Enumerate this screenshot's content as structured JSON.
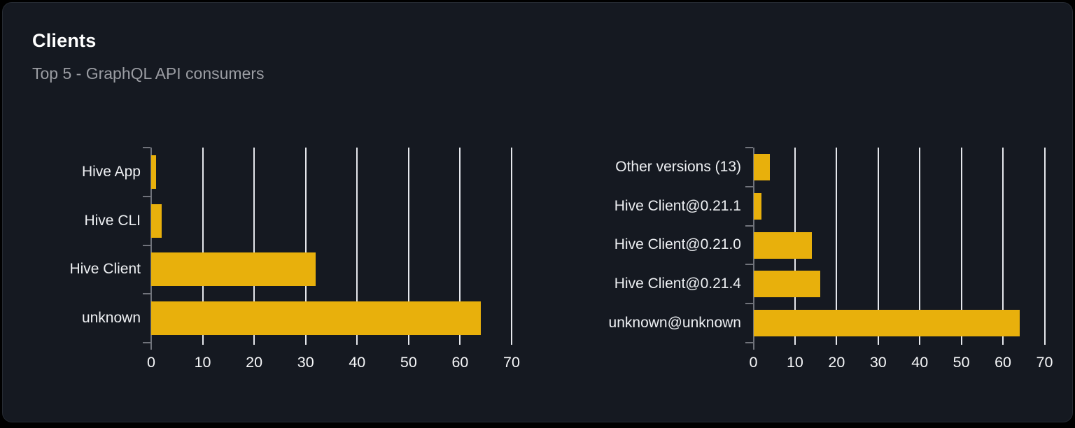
{
  "card": {
    "title": "Clients",
    "subtitle": "Top 5 - GraphQL API consumers"
  },
  "colors": {
    "bar": "#e8b00c",
    "card_background": "#151921",
    "card_border": "#262b33",
    "gridline": "#e5e7ec",
    "axis": "#70737b",
    "category_label": "#eef0f3",
    "tick_label": "#f6f7f9",
    "title": "#ffffff",
    "subtitle": "#9b9da3"
  },
  "chart_data": [
    {
      "type": "bar",
      "orientation": "horizontal",
      "name": "clients-by-name",
      "categories": [
        "Hive App",
        "Hive CLI",
        "Hive Client",
        "unknown"
      ],
      "values": [
        1,
        2,
        32,
        64
      ],
      "xticks": [
        0,
        10,
        20,
        30,
        40,
        50,
        60,
        70
      ],
      "xlim": [
        0,
        70
      ],
      "grid": true,
      "legend": false
    },
    {
      "type": "bar",
      "orientation": "horizontal",
      "name": "clients-by-version",
      "categories": [
        "Other versions (13)",
        "Hive Client@0.21.1",
        "Hive Client@0.21.0",
        "Hive Client@0.21.4",
        "unknown@unknown"
      ],
      "values": [
        4,
        2,
        14,
        16,
        64
      ],
      "xticks": [
        0,
        10,
        20,
        30,
        40,
        50,
        60,
        70
      ],
      "xlim": [
        0,
        70
      ],
      "grid": true,
      "legend": false
    }
  ]
}
